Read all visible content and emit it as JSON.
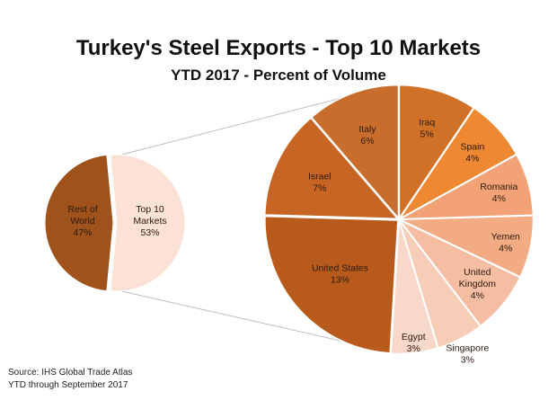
{
  "title": "Turkey's Steel Exports - Top 10 Markets",
  "subtitle": "YTD 2017 - Percent of Volume",
  "source_lines": [
    "Source: IHS Global Trade Atlas",
    "YTD through September 2017"
  ],
  "chart_data": [
    {
      "type": "pie",
      "title": "",
      "labels": [
        {
          "name": "Rest of World",
          "value_label": "47%"
        },
        {
          "name": "Top 10 Markets",
          "value_label": "53%"
        }
      ],
      "values": [
        47,
        53
      ],
      "colors": [
        "#a0521c",
        "#fbe1d6"
      ]
    },
    {
      "type": "pie",
      "title": "",
      "labels": [
        {
          "name": "Iraq",
          "value_label": "5%"
        },
        {
          "name": "Spain",
          "value_label": "4%"
        },
        {
          "name": "Romania",
          "value_label": "4%"
        },
        {
          "name": "Yemen",
          "value_label": "4%"
        },
        {
          "name": "United Kingdom",
          "value_label": "4%"
        },
        {
          "name": "Singapore",
          "value_label": "3%"
        },
        {
          "name": "Egypt",
          "value_label": "3%"
        },
        {
          "name": "United States",
          "value_label": "13%"
        },
        {
          "name": "Israel",
          "value_label": "7%"
        },
        {
          "name": "Italy",
          "value_label": "6%"
        }
      ],
      "values": [
        5,
        4,
        4,
        4,
        4,
        3,
        3,
        13,
        7,
        6
      ],
      "colors": [
        "#d07128",
        "#ef8832",
        "#f2a276",
        "#f2ab82",
        "#f5bea3",
        "#f6cdb7",
        "#f8d8ca",
        "#b85a1c",
        "#c76524",
        "#c86d2c"
      ]
    }
  ]
}
